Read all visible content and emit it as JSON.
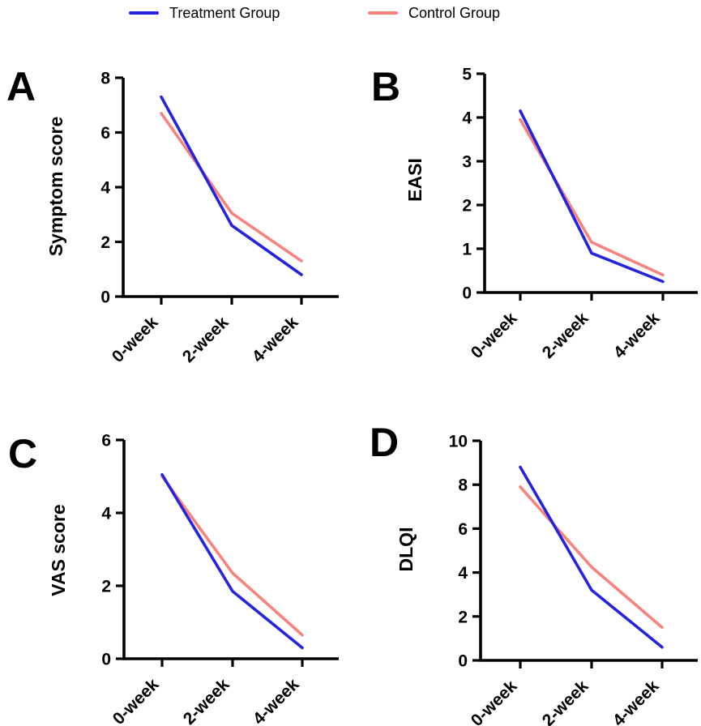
{
  "figure": {
    "background": "#ffffff",
    "text_color": "#000000"
  },
  "legend": {
    "position": "top",
    "items": [
      {
        "id": "treatment",
        "label": "Treatment Group",
        "color": "#2424e0"
      },
      {
        "id": "control",
        "label": "Control Group",
        "color": "#f8827d"
      }
    ]
  },
  "chart_data": [
    {
      "type": "line",
      "panel": "A",
      "title": "",
      "xlabel": "",
      "ylabel": "Symptom score",
      "categories": [
        "0-week",
        "2-week",
        "4-week"
      ],
      "ylim": [
        0,
        8
      ],
      "yticks": [
        0,
        2,
        4,
        6,
        8
      ],
      "grid": false,
      "series": [
        {
          "name": "Treatment Group",
          "color": "#2424e0",
          "values": [
            7.3,
            2.6,
            0.8
          ]
        },
        {
          "name": "Control Group",
          "color": "#f8827d",
          "values": [
            6.7,
            3.05,
            1.3
          ]
        }
      ]
    },
    {
      "type": "line",
      "panel": "B",
      "title": "",
      "xlabel": "",
      "ylabel": "EASI",
      "categories": [
        "0-week",
        "2-week",
        "4-week"
      ],
      "ylim": [
        0,
        5
      ],
      "yticks": [
        0,
        1,
        2,
        3,
        4,
        5
      ],
      "grid": false,
      "series": [
        {
          "name": "Treatment Group",
          "color": "#2424e0",
          "values": [
            4.15,
            0.9,
            0.25
          ]
        },
        {
          "name": "Control Group",
          "color": "#f8827d",
          "values": [
            3.95,
            1.15,
            0.4
          ]
        }
      ]
    },
    {
      "type": "line",
      "panel": "C",
      "title": "",
      "xlabel": "",
      "ylabel": "VAS score",
      "categories": [
        "0-week",
        "2-week",
        "4-week"
      ],
      "ylim": [
        0,
        6
      ],
      "yticks": [
        0,
        2,
        4,
        6
      ],
      "grid": false,
      "series": [
        {
          "name": "Treatment Group",
          "color": "#2424e0",
          "values": [
            5.05,
            1.85,
            0.3
          ]
        },
        {
          "name": "Control Group",
          "color": "#f8827d",
          "values": [
            5.0,
            2.35,
            0.65
          ]
        }
      ]
    },
    {
      "type": "line",
      "panel": "D",
      "title": "",
      "xlabel": "",
      "ylabel": "DLQI",
      "categories": [
        "0-week",
        "2-week",
        "4-week"
      ],
      "ylim": [
        0,
        10
      ],
      "yticks": [
        0,
        2,
        4,
        6,
        8,
        10
      ],
      "grid": false,
      "series": [
        {
          "name": "Treatment Group",
          "color": "#2424e0",
          "values": [
            8.8,
            3.2,
            0.6
          ]
        },
        {
          "name": "Control Group",
          "color": "#f8827d",
          "values": [
            7.9,
            4.25,
            1.5
          ]
        }
      ]
    }
  ]
}
